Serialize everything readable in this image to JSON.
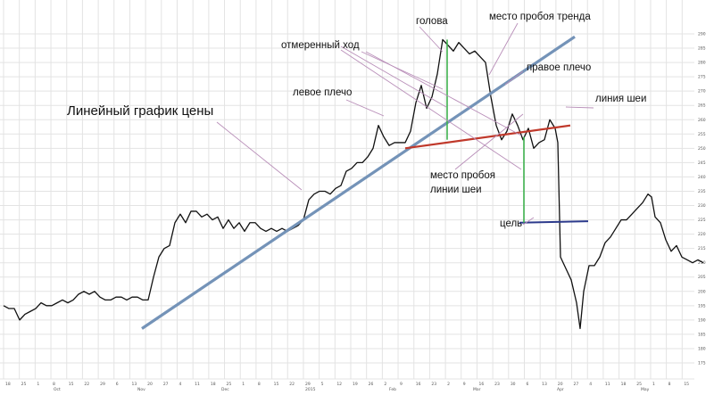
{
  "chart_data": {
    "type": "line",
    "grid": true,
    "y_axis": {
      "position": "right",
      "ticks": [
        "290",
        "285",
        "280",
        "275",
        "270",
        "265",
        "260",
        "255",
        "250",
        "245",
        "240",
        "235",
        "230",
        "225",
        "220",
        "215",
        "210",
        "205",
        "200",
        "195",
        "190",
        "185",
        "180",
        "175"
      ]
    },
    "x_axis": {
      "ticks": [
        "18",
        "25",
        "1",
        "8",
        "15",
        "22",
        "29",
        "6",
        "13",
        "20",
        "27",
        "4",
        "11",
        "18",
        "25",
        "1",
        "8",
        "15",
        "22",
        "29",
        "5",
        "12",
        "19",
        "26",
        "2",
        "9",
        "16",
        "23",
        "2",
        "9",
        "16",
        "23",
        "30",
        "6",
        "13",
        "20",
        "27",
        "4",
        "11",
        "18",
        "25",
        "1",
        "8",
        "15"
      ],
      "months": [
        "Oct",
        "Nov",
        "Dec",
        "2015",
        "Feb",
        "Mar",
        "Apr",
        "May"
      ]
    },
    "series": [
      {
        "values": [
          [
            0,
            195
          ],
          [
            6,
            194
          ],
          [
            12,
            194
          ],
          [
            18,
            190
          ],
          [
            24,
            192
          ],
          [
            30,
            193
          ],
          [
            36,
            194
          ],
          [
            42,
            196
          ],
          [
            48,
            195
          ],
          [
            54,
            195
          ],
          [
            60,
            196
          ],
          [
            66,
            197
          ],
          [
            72,
            196
          ],
          [
            78,
            197
          ],
          [
            84,
            199
          ],
          [
            90,
            200
          ],
          [
            96,
            199
          ],
          [
            102,
            200
          ],
          [
            108,
            198
          ],
          [
            114,
            197
          ],
          [
            120,
            197
          ],
          [
            126,
            198
          ],
          [
            132,
            198
          ],
          [
            138,
            197
          ],
          [
            144,
            198
          ],
          [
            150,
            198
          ],
          [
            156,
            197
          ],
          [
            162,
            197
          ],
          [
            168,
            205
          ],
          [
            174,
            212
          ],
          [
            180,
            215
          ],
          [
            186,
            216
          ],
          [
            192,
            224
          ],
          [
            198,
            227
          ],
          [
            204,
            224
          ],
          [
            210,
            228
          ],
          [
            216,
            228
          ],
          [
            222,
            226
          ],
          [
            228,
            227
          ],
          [
            234,
            225
          ],
          [
            240,
            226
          ],
          [
            246,
            222
          ],
          [
            252,
            225
          ],
          [
            258,
            222
          ],
          [
            264,
            224
          ],
          [
            270,
            221
          ],
          [
            276,
            224
          ],
          [
            282,
            224
          ],
          [
            288,
            222
          ],
          [
            294,
            221
          ],
          [
            300,
            222
          ],
          [
            306,
            221
          ],
          [
            312,
            222
          ],
          [
            318,
            221
          ],
          [
            324,
            222
          ],
          [
            330,
            223
          ],
          [
            336,
            225
          ],
          [
            342,
            232
          ],
          [
            348,
            234
          ],
          [
            354,
            235
          ],
          [
            360,
            235
          ],
          [
            366,
            234
          ],
          [
            372,
            236
          ],
          [
            378,
            237
          ],
          [
            384,
            242
          ],
          [
            390,
            243
          ],
          [
            396,
            245
          ],
          [
            402,
            245
          ],
          [
            408,
            247
          ],
          [
            414,
            250
          ],
          [
            420,
            258
          ],
          [
            426,
            254
          ],
          [
            432,
            251
          ],
          [
            438,
            252
          ],
          [
            444,
            252
          ],
          [
            450,
            252
          ],
          [
            456,
            256
          ],
          [
            462,
            266
          ],
          [
            468,
            272
          ],
          [
            474,
            264
          ],
          [
            480,
            268
          ],
          [
            486,
            276
          ],
          [
            492,
            288
          ],
          [
            498,
            286
          ],
          [
            504,
            284
          ],
          [
            510,
            287
          ],
          [
            516,
            285
          ],
          [
            522,
            283
          ],
          [
            528,
            284
          ],
          [
            534,
            282
          ],
          [
            540,
            280
          ],
          [
            546,
            268
          ],
          [
            552,
            258
          ],
          [
            558,
            253
          ],
          [
            564,
            256
          ],
          [
            570,
            262
          ],
          [
            576,
            258
          ],
          [
            582,
            253
          ],
          [
            588,
            257
          ],
          [
            594,
            250
          ],
          [
            600,
            252
          ],
          [
            606,
            253
          ],
          [
            612,
            260
          ],
          [
            618,
            257
          ],
          [
            621,
            252
          ],
          [
            624,
            212
          ],
          [
            630,
            208
          ],
          [
            636,
            204
          ],
          [
            642,
            196
          ],
          [
            646,
            187
          ],
          [
            650,
            200
          ],
          [
            656,
            209
          ],
          [
            662,
            209
          ],
          [
            668,
            212
          ],
          [
            674,
            217
          ],
          [
            680,
            219
          ],
          [
            686,
            222
          ],
          [
            692,
            225
          ],
          [
            698,
            225
          ],
          [
            704,
            227
          ],
          [
            710,
            229
          ],
          [
            716,
            231
          ],
          [
            722,
            234
          ],
          [
            726,
            233
          ],
          [
            730,
            226
          ],
          [
            736,
            224
          ],
          [
            742,
            218
          ],
          [
            748,
            214
          ],
          [
            754,
            216
          ],
          [
            760,
            212
          ],
          [
            766,
            211
          ],
          [
            772,
            210
          ],
          [
            778,
            211
          ],
          [
            784,
            210
          ]
        ]
      }
    ],
    "trend_line": {
      "from": [
        155,
        187
      ],
      "to": [
        640,
        289
      ]
    },
    "neckline": {
      "from": [
        450,
        250
      ],
      "to": [
        635,
        258
      ]
    },
    "target_line": {
      "from": [
        578,
        224
      ],
      "to": [
        655,
        224.5
      ]
    },
    "measured_moves": [
      {
        "x": 497,
        "from": 253,
        "to": 288
      },
      {
        "x": 583,
        "from": 254,
        "to": 224
      }
    ],
    "annotations": {
      "title": "Линейный график цены",
      "head": "голова",
      "trend_break": "место пробоя тренда",
      "measured_move": "отмеренный ход",
      "right_shoulder": "правое плечо",
      "left_shoulder": "левое плечо",
      "neckline": "линия шеи",
      "neck_break_1": "место пробоя",
      "neck_break_2": "линии шеи",
      "target": "цель"
    },
    "colors": {
      "price": "#111111",
      "trend": "#7493b8",
      "neckline": "#c0392b",
      "target": "#2c3a8c",
      "measure": "#3fb34f",
      "leader": "#b98fb9"
    }
  }
}
